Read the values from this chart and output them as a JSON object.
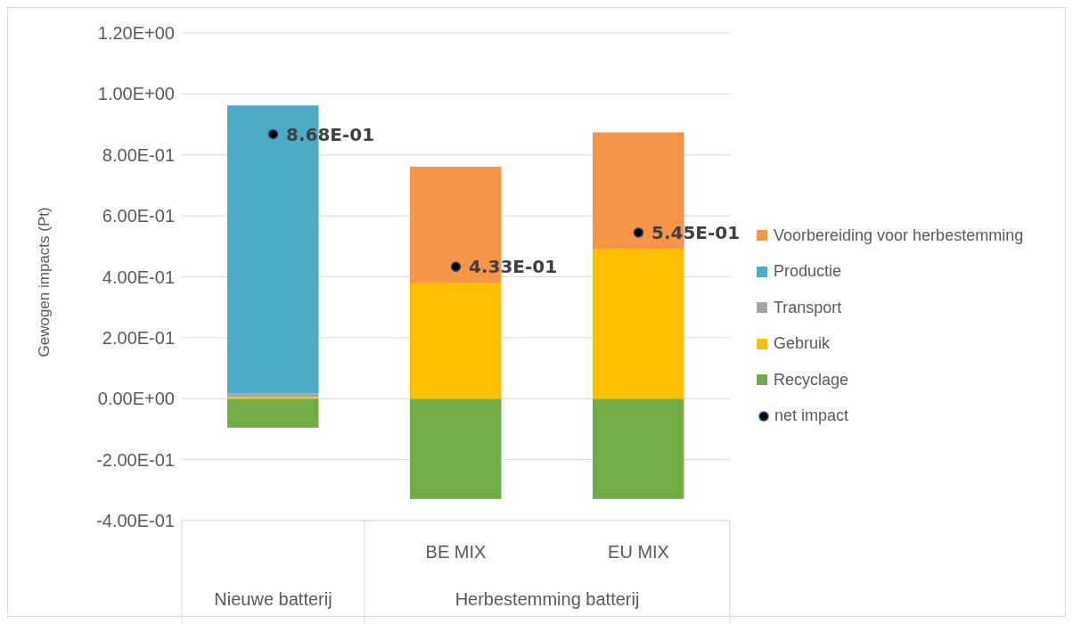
{
  "chart_data": {
    "type": "bar",
    "ylabel": "Gewogen impacts (Pt)",
    "categories": [
      null,
      "BE MIX",
      "EU MIX"
    ],
    "stacked": true,
    "series": [
      {
        "name": "Recyclage",
        "color": "#70ad47",
        "values": [
          -0.095,
          -0.329,
          -0.329
        ]
      },
      {
        "name": "Gebruik",
        "color": "#ffc000",
        "values": [
          0.006,
          0.379,
          0.49
        ]
      },
      {
        "name": "Transport",
        "color": "#a5a5a5",
        "values": [
          0.011,
          0,
          0
        ]
      },
      {
        "name": "Productie",
        "color": "#4bacc6",
        "values": [
          0.945,
          0,
          0
        ]
      },
      {
        "name": "Voorbereiding voor herbestemming",
        "color": "#f79646",
        "values": [
          0,
          0.382,
          0.384
        ]
      },
      {
        "name": "net impact",
        "type": "scatter",
        "color": "#000000",
        "values": [
          0.868,
          0.433,
          0.545
        ],
        "value_labels": [
          "8.68E-01",
          "4.33E-01",
          "5.45E-01"
        ]
      }
    ],
    "annotations": [
      "Nieuwe batterij",
      "Herbestemming batterij"
    ],
    "ylim": [
      -0.4,
      1.2
    ],
    "yticks": [
      {
        "value": -0.4,
        "label": "-4.00E-01"
      },
      {
        "value": -0.2,
        "label": "-2.00E-01"
      },
      {
        "value": 0,
        "label": "0.00E+00"
      },
      {
        "value": 0.2,
        "label": "2.00E-01"
      },
      {
        "value": 0.4,
        "label": "4.00E-01"
      },
      {
        "value": 0.6,
        "label": "6.00E-01"
      },
      {
        "value": 0.8,
        "label": "8.00E-01"
      },
      {
        "value": 1.0,
        "label": "1.00E+00"
      },
      {
        "value": 1.2,
        "label": "1.20E+00"
      }
    ],
    "grid": "y",
    "legend": "right",
    "marker": "circle"
  }
}
